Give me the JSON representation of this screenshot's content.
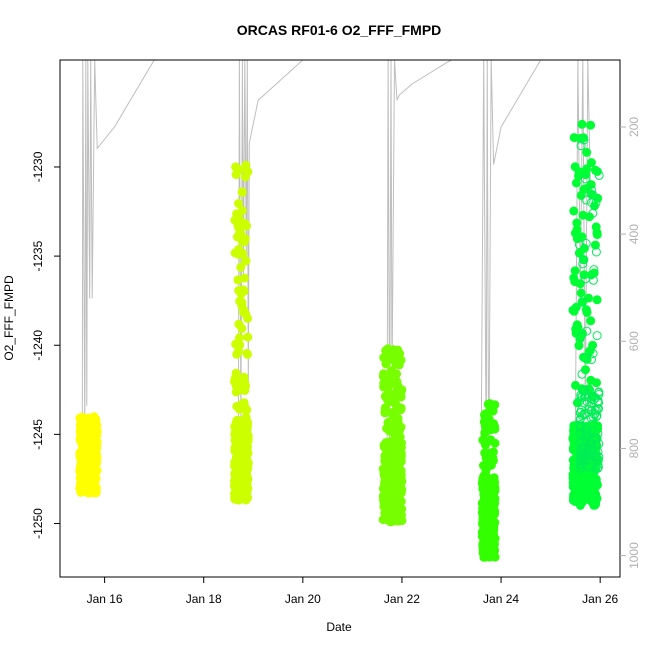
{
  "chart_data": {
    "type": "scatter",
    "title": "ORCAS RF01-6 O2_FFF_FMPD",
    "xlabel": "Date",
    "ylabel": "O2_FFF_FMPD",
    "x_ticks": [
      "Jan 16",
      "Jan 18",
      "Jan 20",
      "Jan 22",
      "Jan 24",
      "Jan 26"
    ],
    "x_tick_values": [
      16,
      18,
      20,
      22,
      24,
      26
    ],
    "xlim": [
      15.1,
      26.4
    ],
    "y_ticks": [
      -1230,
      -1235,
      -1240,
      -1245,
      -1250
    ],
    "ylim": [
      -1253,
      -1224
    ],
    "y2_label": "",
    "y2_ticks": [
      200,
      400,
      600,
      800,
      1000
    ],
    "y2lim": [
      1040,
      75
    ],
    "y2_reversed": true,
    "grid": false,
    "legend": "none",
    "secondary_series": {
      "name": "",
      "color": "#bebebe",
      "segments": [
        {
          "x": [
            15.55,
            15.56,
            15.6,
            15.62,
            15.64,
            15.66,
            15.7,
            15.72,
            15.75,
            15.8,
            15.85,
            16.2,
            17.0,
            17.2
          ],
          "y": [
            760,
            30,
            770,
            30,
            720,
            30,
            520,
            30,
            520,
            30,
            240,
            200,
            60,
            30
          ]
        },
        {
          "x": [
            18.7,
            18.72,
            18.75,
            18.78,
            18.8,
            18.83,
            18.86,
            18.88,
            18.9,
            18.92,
            19.1,
            20.0,
            20.2
          ],
          "y": [
            780,
            30,
            760,
            30,
            480,
            30,
            450,
            30,
            690,
            230,
            150,
            60,
            30
          ]
        },
        {
          "x": [
            21.7,
            21.72,
            21.75,
            21.78,
            21.8,
            21.85,
            21.9,
            21.95,
            22.2,
            22.9,
            23.0
          ],
          "y": [
            780,
            30,
            800,
            30,
            680,
            30,
            150,
            140,
            120,
            80,
            30
          ]
        },
        {
          "x": [
            23.6,
            23.65,
            23.7,
            23.72,
            23.75,
            23.8,
            23.85,
            24.0,
            24.8,
            25.0
          ],
          "y": [
            790,
            30,
            820,
            30,
            880,
            30,
            270,
            200,
            60,
            30
          ]
        },
        {
          "x": [
            25.5,
            25.55,
            25.6,
            25.65,
            25.7,
            25.75,
            25.8
          ],
          "y": [
            760,
            30,
            520,
            30,
            740,
            30,
            300
          ]
        }
      ]
    },
    "series": [
      {
        "color": "#ffff00",
        "x_start": 15.5,
        "x_end": 15.85,
        "y_low": -1248.3,
        "y_high": -1244.0
      },
      {
        "color": "#ccff00",
        "x_start": 18.62,
        "x_end": 18.9,
        "y_low": -1248.7,
        "y_high": -1229.8
      },
      {
        "color": "#77ff00",
        "x_start": 21.62,
        "x_end": 22.0,
        "y_low": -1249.9,
        "y_high": -1240.2
      },
      {
        "color": "#33ff00",
        "x_start": 23.62,
        "x_end": 23.88,
        "y_low": -1251.9,
        "y_high": -1243.0
      },
      {
        "color": "#00ff33",
        "x_start": 25.45,
        "x_end": 25.95,
        "y_low": -1249.0,
        "y_high": -1227.6
      },
      {
        "color": "#00ee55",
        "x_start": 25.58,
        "x_end": 25.98,
        "y_low": -1247.0,
        "y_high": -1228.0,
        "open": true
      }
    ]
  }
}
